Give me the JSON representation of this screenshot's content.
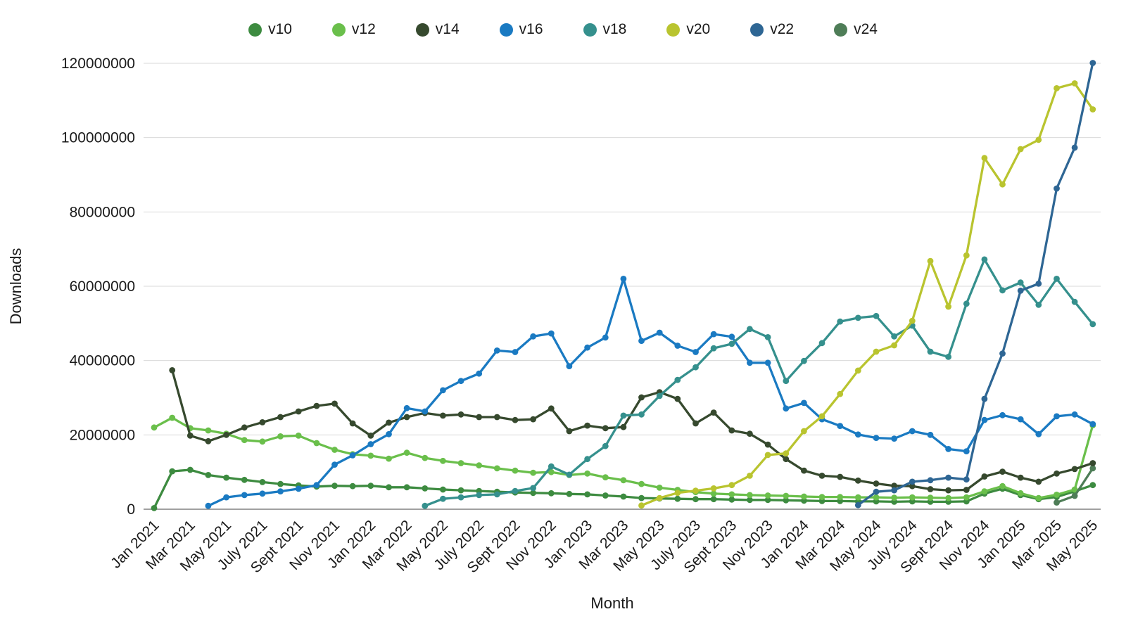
{
  "chart_data": {
    "type": "line",
    "title": "",
    "xlabel": "Month",
    "ylabel": "Downloads",
    "unit": "downloads",
    "value_scale": 1000000,
    "ylim": [
      0,
      120000000
    ],
    "y_ticks": [
      0,
      20000000,
      40000000,
      60000000,
      80000000,
      100000000,
      120000000
    ],
    "x_tick_labels": [
      "Jan 2021",
      "Mar 2021",
      "May 2021",
      "July 2021",
      "Sept 2021",
      "Nov 2021",
      "Jan 2022",
      "Mar 2022",
      "May 2022",
      "July 2022",
      "Sept 2022",
      "Nov 2022",
      "Jan 2023",
      "Mar 2023",
      "May 2023",
      "July 2023",
      "Sept 2023",
      "Nov 2023",
      "Jan 2024",
      "Mar 2024",
      "May 2024",
      "July 2024",
      "Sept 2024",
      "Nov 2024",
      "Jan 2025",
      "Mar 2025",
      "May 2025"
    ],
    "grid": "horizontal",
    "legend_position": "top",
    "series": [
      {
        "name": "v10",
        "color": "#3d8b40",
        "values_millions": [
          0.3,
          10.2,
          10.6,
          9.2,
          8.5,
          7.9,
          7.3,
          6.8,
          6.4,
          6.1,
          6.3,
          6.2,
          6.3,
          5.9,
          5.9,
          5.6,
          5.3,
          5.1,
          4.9,
          4.7,
          4.5,
          4.4,
          4.3,
          4.1,
          4.0,
          3.7,
          3.4,
          3.0,
          2.9,
          2.8,
          2.7,
          2.7,
          2.6,
          2.5,
          2.5,
          2.4,
          2.3,
          2.2,
          2.2,
          2.1,
          2.1,
          2.0,
          2.1,
          2.0,
          2.0,
          2.1,
          4.2,
          5.5,
          3.8,
          2.7,
          3.3,
          4.8,
          6.5
        ]
      },
      {
        "name": "v12",
        "color": "#6abf4b",
        "values_millions": [
          22.0,
          24.6,
          21.8,
          21.2,
          20.3,
          18.6,
          18.2,
          19.6,
          19.8,
          17.8,
          16.0,
          14.8,
          14.4,
          13.6,
          15.2,
          13.8,
          13.0,
          12.4,
          11.8,
          11.0,
          10.4,
          9.8,
          10.0,
          9.2,
          9.6,
          8.6,
          7.8,
          6.8,
          5.8,
          5.2,
          4.6,
          4.2,
          4.0,
          3.8,
          3.7,
          3.6,
          3.4,
          3.3,
          3.3,
          3.2,
          3.2,
          3.1,
          3.2,
          3.1,
          3.0,
          3.2,
          4.8,
          6.2,
          4.3,
          3.0,
          3.9,
          5.3,
          22.6
        ]
      },
      {
        "name": "v14",
        "color": "#36492e",
        "values_millions": [
          null,
          37.4,
          19.8,
          18.3,
          20.0,
          22.0,
          23.4,
          24.8,
          26.3,
          27.8,
          28.4,
          23.1,
          19.8,
          23.3,
          24.8,
          25.9,
          25.2,
          25.5,
          24.8,
          24.8,
          24.0,
          24.2,
          27.1,
          21.0,
          22.5,
          21.8,
          22.1,
          30.1,
          31.5,
          29.7,
          23.1,
          26.0,
          21.2,
          20.3,
          17.4,
          13.5,
          10.4,
          9.0,
          8.7,
          7.7,
          6.9,
          6.3,
          6.2,
          5.4,
          5.1,
          5.2,
          8.8,
          10.1,
          8.5,
          7.4,
          9.6,
          10.8,
          12.4
        ]
      },
      {
        "name": "v16",
        "color": "#1a7ac2",
        "values_millions": [
          null,
          null,
          null,
          0.9,
          3.2,
          3.8,
          4.2,
          4.8,
          5.5,
          6.5,
          12.0,
          14.5,
          17.5,
          20.2,
          27.2,
          26.3,
          32.0,
          34.5,
          36.5,
          42.7,
          42.3,
          46.5,
          47.3,
          38.5,
          43.5,
          46.2,
          62.0,
          45.3,
          47.5,
          44.0,
          42.3,
          47.1,
          46.4,
          39.4,
          39.4,
          27.1,
          28.6,
          24.2,
          22.4,
          20.1,
          19.2,
          19.0,
          21.0,
          20.0,
          16.2,
          15.6,
          24.0,
          25.3,
          24.2,
          20.2,
          25.0,
          25.5,
          22.9
        ]
      },
      {
        "name": "v18",
        "color": "#35908d",
        "values_millions": [
          null,
          null,
          null,
          null,
          null,
          null,
          null,
          null,
          null,
          null,
          null,
          null,
          null,
          null,
          null,
          0.9,
          2.8,
          3.2,
          3.8,
          4.0,
          4.9,
          5.7,
          11.5,
          9.3,
          13.5,
          17.0,
          25.2,
          25.5,
          30.5,
          34.8,
          38.2,
          43.3,
          44.5,
          48.5,
          46.3,
          34.5,
          39.9,
          44.7,
          50.5,
          51.5,
          52.0,
          46.5,
          49.4,
          42.4,
          41.0,
          55.3,
          67.2,
          58.9,
          61.0,
          55.0,
          62.0,
          55.8,
          49.8
        ]
      },
      {
        "name": "v20",
        "color": "#b9c42f",
        "values_millions": [
          null,
          null,
          null,
          null,
          null,
          null,
          null,
          null,
          null,
          null,
          null,
          null,
          null,
          null,
          null,
          null,
          null,
          null,
          null,
          null,
          null,
          null,
          null,
          null,
          null,
          null,
          null,
          1.0,
          3.0,
          4.4,
          5.0,
          5.6,
          6.5,
          9.0,
          14.6,
          15.0,
          21.0,
          25.0,
          31.0,
          37.3,
          42.4,
          44.1,
          50.7,
          66.8,
          54.5,
          68.3,
          94.5,
          87.4,
          96.9,
          99.4,
          113.3,
          114.6,
          107.6
        ]
      },
      {
        "name": "v22",
        "color": "#2e6694",
        "values_millions": [
          null,
          null,
          null,
          null,
          null,
          null,
          null,
          null,
          null,
          null,
          null,
          null,
          null,
          null,
          null,
          null,
          null,
          null,
          null,
          null,
          null,
          null,
          null,
          null,
          null,
          null,
          null,
          null,
          null,
          null,
          null,
          null,
          null,
          null,
          null,
          null,
          null,
          null,
          null,
          1.1,
          4.7,
          5.1,
          7.4,
          7.8,
          8.5,
          8.0,
          29.7,
          41.9,
          58.8,
          60.7,
          86.3,
          97.3,
          120.1
        ]
      },
      {
        "name": "v24",
        "color": "#4e7d57",
        "values_millions": [
          null,
          null,
          null,
          null,
          null,
          null,
          null,
          null,
          null,
          null,
          null,
          null,
          null,
          null,
          null,
          null,
          null,
          null,
          null,
          null,
          null,
          null,
          null,
          null,
          null,
          null,
          null,
          null,
          null,
          null,
          null,
          null,
          null,
          null,
          null,
          null,
          null,
          null,
          null,
          null,
          null,
          null,
          null,
          null,
          null,
          null,
          null,
          null,
          null,
          null,
          1.8,
          3.6,
          11.0
        ]
      }
    ]
  },
  "layout_colors": {
    "gridline": "#d9d9d9",
    "axis_line": "#808080",
    "text": "#1a1a1a",
    "background": "#ffffff"
  }
}
